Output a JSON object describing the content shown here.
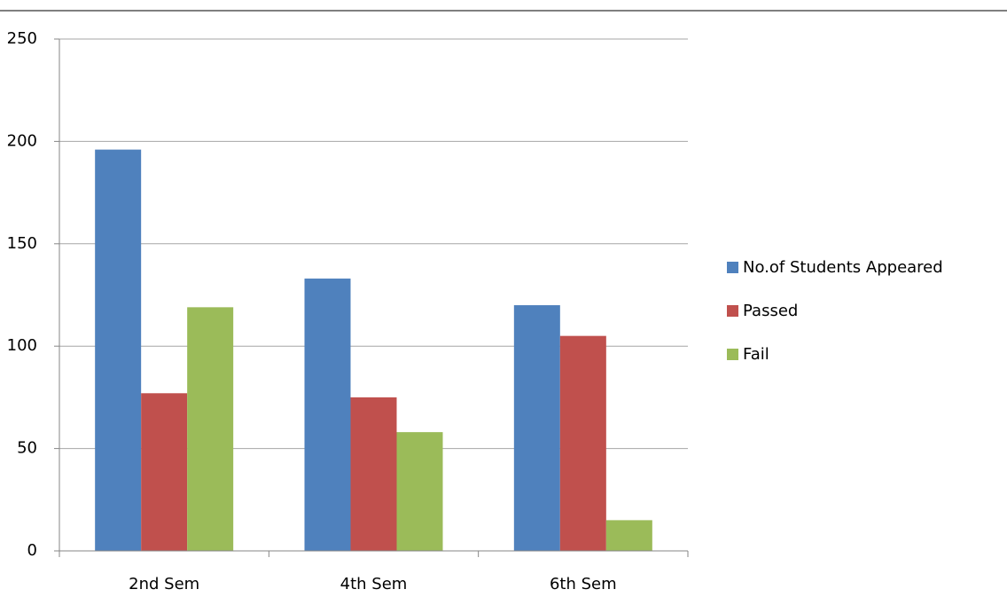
{
  "chart_data": {
    "type": "bar",
    "categories": [
      "2nd Sem",
      "4th Sem",
      "6th Sem"
    ],
    "series": [
      {
        "name": "No.of Students Appeared",
        "color": "#4f81bd",
        "values": [
          196,
          133,
          120
        ]
      },
      {
        "name": "Passed",
        "color": "#c0504d",
        "values": [
          77,
          75,
          105
        ]
      },
      {
        "name": "Fail",
        "color": "#9bbb59",
        "values": [
          119,
          58,
          15
        ]
      }
    ],
    "ylim": [
      0,
      250
    ],
    "yticks": [
      0,
      50,
      100,
      150,
      200,
      250
    ],
    "grid": true,
    "legend": "right"
  }
}
